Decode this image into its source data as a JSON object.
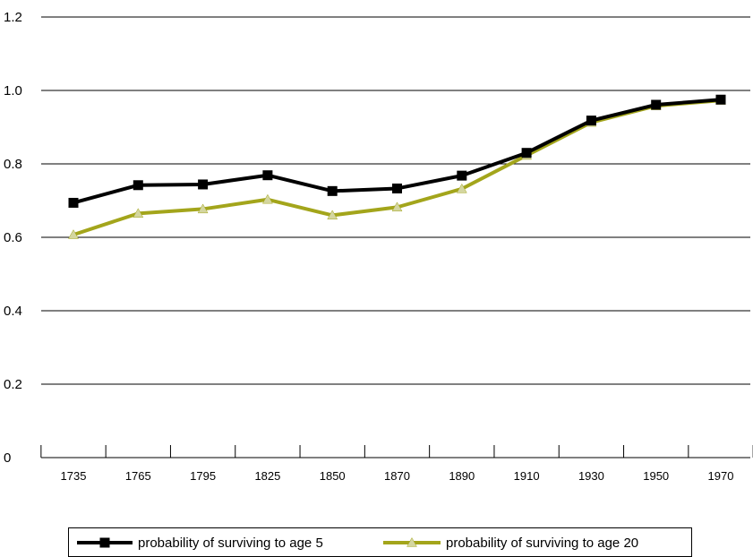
{
  "chart_data": {
    "type": "line",
    "categories": [
      "1735",
      "1765",
      "1795",
      "1825",
      "1850",
      "1870",
      "1890",
      "1910",
      "1930",
      "1950",
      "1970"
    ],
    "yticks": [
      "0",
      "0.2",
      "0.4",
      "0.6",
      "0.8",
      "1.0",
      "1.2"
    ],
    "ylim": [
      0,
      1.2
    ],
    "grid": true,
    "legend_position": "bottom",
    "series": [
      {
        "name": "probability of surviving to age 5",
        "color": "#000000",
        "marker": "square",
        "values": [
          0.694,
          0.742,
          0.744,
          0.769,
          0.726,
          0.733,
          0.768,
          0.83,
          0.918,
          0.961,
          0.975
        ]
      },
      {
        "name": "probability of surviving to age 20",
        "color": "#a3a51b",
        "marker_color": "#d4d6a0",
        "marker": "triangle",
        "values": [
          0.607,
          0.665,
          0.677,
          0.703,
          0.66,
          0.682,
          0.732,
          0.823,
          0.913,
          0.958,
          0.973
        ]
      }
    ]
  }
}
